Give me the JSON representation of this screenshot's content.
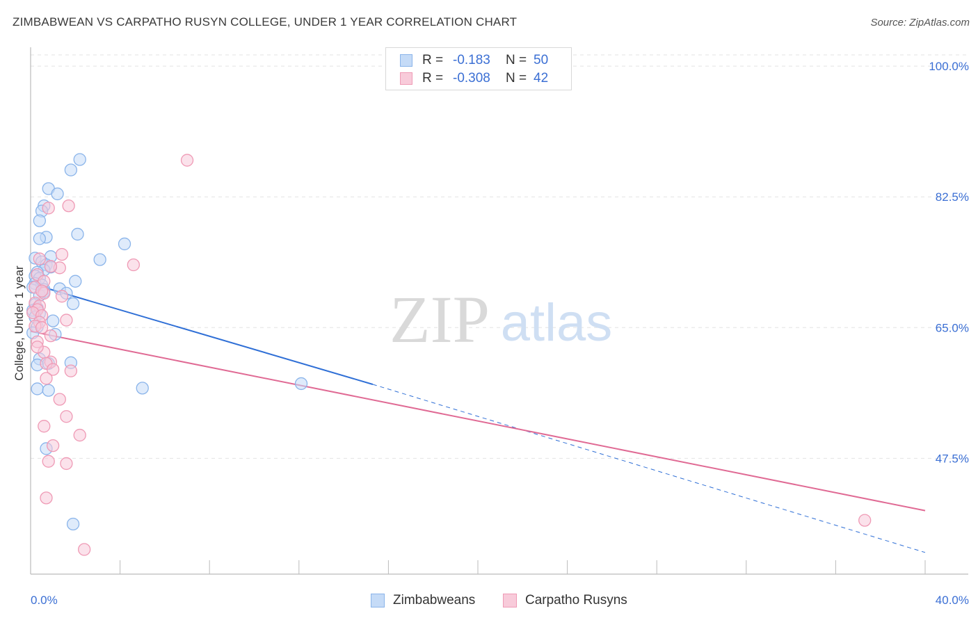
{
  "title": "ZIMBABWEAN VS CARPATHO RUSYN COLLEGE, UNDER 1 YEAR CORRELATION CHART",
  "source": "Source: ZipAtlas.com",
  "watermark": {
    "zip": "ZIP",
    "atlas": "atlas"
  },
  "colors": {
    "blue": "#8ab4ea",
    "blue_fill": "#c5dbf7",
    "blue_line": "#2f6fd6",
    "pink": "#ef9ab5",
    "pink_fill": "#f8cbda",
    "pink_line": "#e06a94",
    "tick": "#3b6fd4",
    "grid": "#e3e3e3"
  },
  "legend": {
    "rows": [
      {
        "r_label": "R =",
        "r_value": "-0.183",
        "n_label": "N =",
        "n_value": "50"
      },
      {
        "r_label": "R =",
        "r_value": "-0.308",
        "n_label": "N =",
        "n_value": "42"
      }
    ]
  },
  "bottom_legend": [
    "Zimbabweans",
    "Carpatho Rusyns"
  ],
  "chart_data": {
    "type": "scatter",
    "title": "ZIMBABWEAN VS CARPATHO RUSYN COLLEGE, UNDER 1 YEAR CORRELATION CHART",
    "xlabel": "",
    "ylabel": "College, Under 1 year",
    "xlim": [
      0,
      40
    ],
    "ylim": [
      32,
      101.5
    ],
    "x_tick_labels": [
      "0.0%",
      "40.0%"
    ],
    "y_ticks": [
      47.5,
      65.0,
      82.5,
      100.0
    ],
    "y_tick_labels": [
      "47.5%",
      "65.0%",
      "82.5%",
      "100.0%"
    ],
    "grid": true,
    "series": [
      {
        "name": "Zimbabweans",
        "points": [
          [
            2.2,
            87.5
          ],
          [
            1.8,
            86.1
          ],
          [
            0.8,
            83.6
          ],
          [
            1.2,
            82.9
          ],
          [
            0.6,
            81.3
          ],
          [
            0.5,
            80.6
          ],
          [
            0.4,
            79.3
          ],
          [
            2.1,
            77.5
          ],
          [
            0.7,
            77.1
          ],
          [
            0.4,
            76.9
          ],
          [
            4.2,
            76.2
          ],
          [
            0.2,
            74.3
          ],
          [
            0.9,
            74.5
          ],
          [
            3.1,
            74.1
          ],
          [
            0.5,
            73.8
          ],
          [
            0.7,
            73.4
          ],
          [
            0.9,
            73.1
          ],
          [
            0.6,
            72.7
          ],
          [
            0.3,
            72.4
          ],
          [
            0.2,
            71.9
          ],
          [
            0.4,
            71.6
          ],
          [
            2.0,
            71.2
          ],
          [
            0.2,
            70.9
          ],
          [
            0.5,
            70.7
          ],
          [
            0.1,
            70.4
          ],
          [
            0.6,
            70.1
          ],
          [
            1.3,
            70.2
          ],
          [
            1.6,
            69.6
          ],
          [
            0.4,
            69.3
          ],
          [
            0.6,
            69.8
          ],
          [
            1.9,
            68.2
          ],
          [
            0.2,
            68.1
          ],
          [
            0.3,
            67.6
          ],
          [
            0.1,
            67.3
          ],
          [
            0.4,
            66.9
          ],
          [
            0.2,
            66.4
          ],
          [
            1.0,
            65.9
          ],
          [
            0.3,
            65.1
          ],
          [
            0.1,
            64.3
          ],
          [
            1.1,
            64.1
          ],
          [
            0.4,
            60.8
          ],
          [
            0.8,
            60.2
          ],
          [
            0.3,
            60.0
          ],
          [
            1.8,
            60.3
          ],
          [
            5.0,
            56.9
          ],
          [
            0.3,
            56.8
          ],
          [
            0.8,
            56.6
          ],
          [
            12.1,
            57.5
          ],
          [
            0.7,
            48.8
          ],
          [
            1.9,
            38.7
          ]
        ]
      },
      {
        "name": "Carpatho Rusyns",
        "points": [
          [
            7.0,
            87.4
          ],
          [
            1.7,
            81.3
          ],
          [
            0.8,
            81.0
          ],
          [
            1.4,
            74.8
          ],
          [
            0.4,
            74.2
          ],
          [
            4.6,
            73.4
          ],
          [
            1.3,
            73.0
          ],
          [
            0.9,
            73.2
          ],
          [
            0.3,
            72.1
          ],
          [
            0.6,
            71.2
          ],
          [
            0.2,
            70.4
          ],
          [
            0.6,
            69.6
          ],
          [
            1.4,
            69.2
          ],
          [
            0.2,
            68.3
          ],
          [
            0.4,
            67.9
          ],
          [
            0.3,
            67.4
          ],
          [
            0.1,
            67.0
          ],
          [
            0.5,
            66.6
          ],
          [
            1.6,
            66.0
          ],
          [
            0.4,
            65.7
          ],
          [
            0.2,
            65.2
          ],
          [
            0.5,
            65.0
          ],
          [
            0.3,
            63.1
          ],
          [
            0.6,
            61.7
          ],
          [
            0.9,
            60.4
          ],
          [
            0.7,
            60.2
          ],
          [
            1.8,
            59.2
          ],
          [
            1.0,
            59.4
          ],
          [
            0.7,
            58.2
          ],
          [
            1.3,
            55.4
          ],
          [
            1.6,
            53.1
          ],
          [
            0.6,
            51.8
          ],
          [
            2.2,
            50.6
          ],
          [
            1.0,
            49.2
          ],
          [
            0.8,
            47.1
          ],
          [
            1.6,
            46.8
          ],
          [
            0.7,
            42.2
          ],
          [
            37.3,
            39.2
          ],
          [
            2.4,
            35.3
          ],
          [
            0.3,
            62.4
          ],
          [
            0.9,
            63.9
          ],
          [
            0.5,
            69.9
          ]
        ]
      }
    ],
    "trendlines": [
      {
        "series": "Zimbabweans",
        "solid": [
          [
            0,
            70.9
          ],
          [
            15.3,
            57.4
          ]
        ],
        "dashed": [
          [
            15.3,
            57.4
          ],
          [
            40,
            34.9
          ]
        ]
      },
      {
        "series": "Carpatho Rusyns",
        "solid": [
          [
            0,
            64.5
          ],
          [
            40,
            40.5
          ]
        ]
      }
    ]
  }
}
